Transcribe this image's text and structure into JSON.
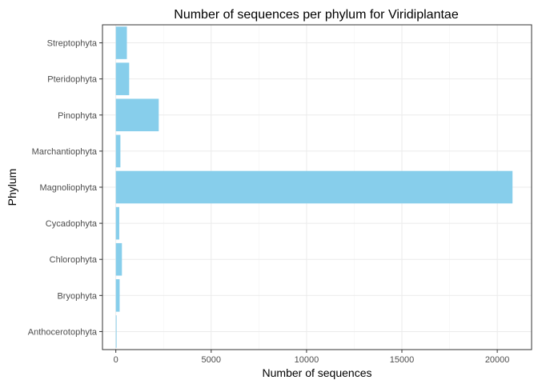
{
  "chart_data": {
    "type": "bar",
    "orientation": "horizontal",
    "title": "Number of sequences per phylum for Viridiplantae",
    "xlabel": "Number of  sequences",
    "ylabel": "Phylum",
    "categories": [
      "Anthocerotophyta",
      "Bryophyta",
      "Chlorophyta",
      "Cycadophyta",
      "Magnoliophyta",
      "Marchantiophyta",
      "Pinophyta",
      "Pteridophyta",
      "Streptophyta"
    ],
    "values": [
      40,
      200,
      320,
      180,
      20800,
      240,
      2250,
      700,
      580
    ],
    "xlim": [
      -700,
      21800
    ],
    "xticks": [
      0,
      5000,
      10000,
      15000,
      20000
    ],
    "xtick_labels": [
      "0",
      "5000",
      "10000",
      "15000",
      "20000"
    ],
    "grid": true,
    "legend": "none",
    "bar_color": "#87ceeb"
  }
}
